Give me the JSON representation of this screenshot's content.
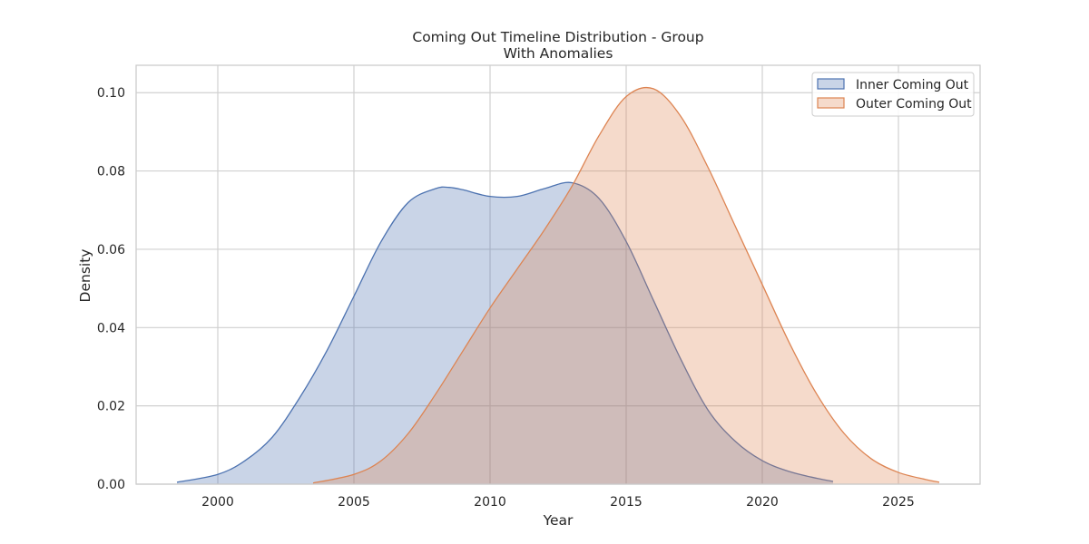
{
  "chart_data": {
    "type": "area",
    "title": "Coming Out Timeline Distribution - Group\nWith Anomalies",
    "xlabel": "Year",
    "ylabel": "Density",
    "xlim": [
      1997,
      2028
    ],
    "ylim": [
      0,
      0.107
    ],
    "xticks": [
      2000,
      2005,
      2010,
      2015,
      2020,
      2025
    ],
    "yticks": [
      0.0,
      0.02,
      0.04,
      0.06,
      0.08,
      0.1
    ],
    "ytick_labels": [
      "0.00",
      "0.02",
      "0.04",
      "0.06",
      "0.08",
      "0.10"
    ],
    "grid": true,
    "legend_position": "top-right",
    "series": [
      {
        "name": "Inner Coming Out",
        "color": "#4c72b0",
        "fill_color": "#c8d3e6",
        "x": [
          1998.5,
          2000,
          2001,
          2002,
          2003,
          2004,
          2005,
          2006,
          2007,
          2008,
          2008.5,
          2009,
          2010,
          2011,
          2012,
          2013,
          2014,
          2015,
          2016,
          2017,
          2018,
          2019,
          2020,
          2021,
          2022,
          2022.6
        ],
        "y": [
          0.0005,
          0.0025,
          0.006,
          0.012,
          0.022,
          0.034,
          0.048,
          0.062,
          0.072,
          0.0755,
          0.0758,
          0.0752,
          0.0735,
          0.0735,
          0.0755,
          0.077,
          0.073,
          0.062,
          0.047,
          0.032,
          0.019,
          0.011,
          0.006,
          0.0032,
          0.0015,
          0.0007
        ]
      },
      {
        "name": "Outer Coming Out",
        "color": "#dd8452",
        "fill_color": "#f4d4c3",
        "x": [
          2003.5,
          2005,
          2006,
          2007,
          2008,
          2009,
          2010,
          2011,
          2012,
          2013,
          2014,
          2015,
          2016,
          2017,
          2018,
          2019,
          2020,
          2021,
          2022,
          2023,
          2024,
          2025,
          2026,
          2026.5
        ],
        "y": [
          0.0003,
          0.0025,
          0.006,
          0.013,
          0.023,
          0.034,
          0.045,
          0.055,
          0.065,
          0.076,
          0.089,
          0.099,
          0.101,
          0.094,
          0.081,
          0.066,
          0.051,
          0.036,
          0.023,
          0.013,
          0.0065,
          0.003,
          0.0012,
          0.0005
        ]
      }
    ]
  }
}
